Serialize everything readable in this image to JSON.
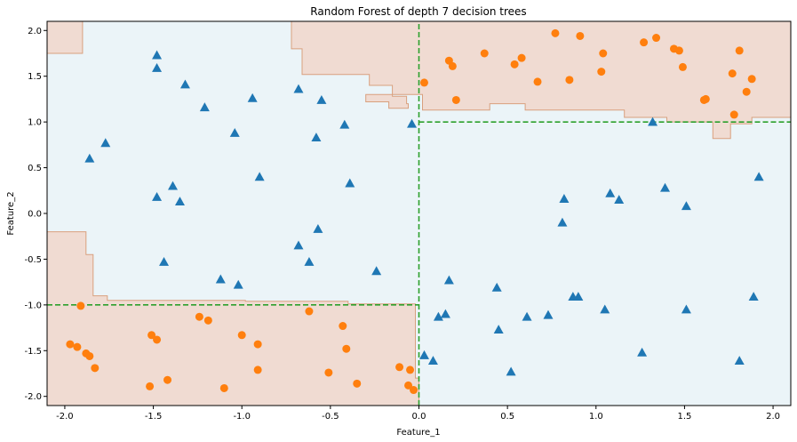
{
  "chart_data": {
    "type": "scatter",
    "title": "Random Forest of depth 7 decision trees",
    "xlabel": "Feature_1",
    "ylabel": "Feature_2",
    "xlim": [
      -2.1,
      2.1
    ],
    "ylim": [
      -2.1,
      2.1
    ],
    "x_ticks": [
      "-2.0",
      "-1.5",
      "-1.0",
      "-0.5",
      "0.0",
      "0.5",
      "1.0",
      "1.5",
      "2.0"
    ],
    "y_ticks": [
      "-2.0",
      "-1.5",
      "-1.0",
      "-0.5",
      "0.0",
      "0.5",
      "1.0",
      "1.5",
      "2.0"
    ],
    "x_tick_values": [
      -2.0,
      -1.5,
      -1.0,
      -0.5,
      0.0,
      0.5,
      1.0,
      1.5,
      2.0
    ],
    "y_tick_values": [
      -2.0,
      -1.5,
      -1.0,
      -0.5,
      0.0,
      0.5,
      1.0,
      1.5,
      2.0
    ],
    "grid": false,
    "colors": {
      "background_region": "#ebf4f8",
      "orange_region": "#f0dbd2",
      "region_edge": "#d9a07e",
      "triangle_marker": "#1f77b4",
      "circle_marker": "#ff7f0e",
      "true_boundary": "#2ca02c"
    },
    "true_boundaries": [
      {
        "x": [
          0.0,
          0.0
        ],
        "y": [
          -2.1,
          2.1
        ]
      },
      {
        "x": [
          -2.1,
          0.0
        ],
        "y": [
          -1.0,
          -1.0
        ]
      },
      {
        "x": [
          0.0,
          2.1
        ],
        "y": [
          1.0,
          1.0
        ]
      }
    ],
    "decision_regions": [
      [
        [
          -2.1,
          1.75
        ],
        [
          -1.9,
          1.75
        ],
        [
          -1.9,
          2.1
        ],
        [
          -2.1,
          2.1
        ]
      ],
      [
        [
          -0.72,
          2.1
        ],
        [
          -0.72,
          1.8
        ],
        [
          -0.66,
          1.8
        ],
        [
          -0.66,
          1.52
        ],
        [
          -0.28,
          1.52
        ],
        [
          -0.28,
          1.4
        ],
        [
          -0.15,
          1.4
        ],
        [
          -0.15,
          1.28
        ],
        [
          -0.07,
          1.28
        ],
        [
          -0.07,
          1.2
        ],
        [
          -0.06,
          1.2
        ],
        [
          -0.06,
          1.15
        ],
        [
          -0.17,
          1.15
        ],
        [
          -0.17,
          1.22
        ],
        [
          -0.3,
          1.22
        ],
        [
          -0.3,
          1.3
        ],
        [
          -0.3,
          1.3
        ],
        [
          0.02,
          1.3
        ],
        [
          0.02,
          1.13
        ],
        [
          0.4,
          1.13
        ],
        [
          0.4,
          1.2
        ],
        [
          0.6,
          1.2
        ],
        [
          0.6,
          1.13
        ],
        [
          1.16,
          1.13
        ],
        [
          1.16,
          1.05
        ],
        [
          1.4,
          1.05
        ],
        [
          1.4,
          1.0
        ],
        [
          1.66,
          1.0
        ],
        [
          1.66,
          0.82
        ],
        [
          1.76,
          0.82
        ],
        [
          1.76,
          0.98
        ],
        [
          1.88,
          0.98
        ],
        [
          1.88,
          1.05
        ],
        [
          2.1,
          1.05
        ],
        [
          2.1,
          2.1
        ]
      ],
      [
        [
          -2.1,
          -0.2
        ],
        [
          -1.88,
          -0.2
        ],
        [
          -1.88,
          -0.45
        ],
        [
          -1.84,
          -0.45
        ],
        [
          -1.84,
          -0.9
        ],
        [
          -1.76,
          -0.9
        ],
        [
          -1.76,
          -0.95
        ],
        [
          -0.98,
          -0.95
        ],
        [
          -0.98,
          -0.96
        ],
        [
          -0.4,
          -0.96
        ],
        [
          -0.4,
          -0.99
        ],
        [
          -0.02,
          -0.99
        ],
        [
          -0.02,
          -1.8
        ],
        [
          0.0,
          -1.8
        ],
        [
          0.0,
          -2.1
        ],
        [
          -2.1,
          -2.1
        ]
      ]
    ],
    "series": [
      {
        "marker": "triangle",
        "color": "#1f77b4",
        "points": [
          [
            -1.48,
            1.73
          ],
          [
            -1.48,
            1.59
          ],
          [
            -1.32,
            1.41
          ],
          [
            -1.21,
            1.16
          ],
          [
            -0.94,
            1.26
          ],
          [
            -0.68,
            1.36
          ],
          [
            -0.55,
            1.24
          ],
          [
            -0.42,
            0.97
          ],
          [
            -0.04,
            0.98
          ],
          [
            -0.58,
            0.83
          ],
          [
            -1.04,
            0.88
          ],
          [
            -1.77,
            0.77
          ],
          [
            -1.86,
            0.6
          ],
          [
            -0.9,
            0.4
          ],
          [
            -1.39,
            0.3
          ],
          [
            -0.39,
            0.33
          ],
          [
            -1.48,
            0.18
          ],
          [
            -1.35,
            0.13
          ],
          [
            -0.57,
            -0.17
          ],
          [
            -0.68,
            -0.35
          ],
          [
            -0.62,
            -0.53
          ],
          [
            -1.44,
            -0.53
          ],
          [
            -0.24,
            -0.63
          ],
          [
            -1.12,
            -0.72
          ],
          [
            -1.02,
            -0.78
          ],
          [
            0.17,
            -0.73
          ],
          [
            0.44,
            -0.81
          ],
          [
            0.15,
            -1.1
          ],
          [
            0.11,
            -1.13
          ],
          [
            0.61,
            -1.13
          ],
          [
            0.73,
            -1.11
          ],
          [
            0.87,
            -0.91
          ],
          [
            0.9,
            -0.91
          ],
          [
            1.05,
            -1.05
          ],
          [
            1.51,
            -1.05
          ],
          [
            1.89,
            -0.91
          ],
          [
            0.45,
            -1.27
          ],
          [
            1.26,
            -1.52
          ],
          [
            0.03,
            -1.55
          ],
          [
            0.08,
            -1.61
          ],
          [
            0.52,
            -1.73
          ],
          [
            1.81,
            -1.61
          ],
          [
            0.82,
            0.16
          ],
          [
            1.08,
            0.22
          ],
          [
            1.13,
            0.15
          ],
          [
            1.39,
            0.28
          ],
          [
            1.51,
            0.08
          ],
          [
            1.92,
            0.4
          ],
          [
            0.81,
            -0.1
          ],
          [
            1.32,
            1.0
          ]
        ]
      },
      {
        "marker": "circle",
        "color": "#ff7f0e",
        "points": [
          [
            0.03,
            1.43
          ],
          [
            0.17,
            1.67
          ],
          [
            0.19,
            1.61
          ],
          [
            0.21,
            1.24
          ],
          [
            0.37,
            1.75
          ],
          [
            0.54,
            1.63
          ],
          [
            0.58,
            1.7
          ],
          [
            0.67,
            1.44
          ],
          [
            0.77,
            1.97
          ],
          [
            0.85,
            1.46
          ],
          [
            0.91,
            1.94
          ],
          [
            1.03,
            1.55
          ],
          [
            1.04,
            1.75
          ],
          [
            1.27,
            1.87
          ],
          [
            1.34,
            1.92
          ],
          [
            1.44,
            1.8
          ],
          [
            1.47,
            1.78
          ],
          [
            1.49,
            1.6
          ],
          [
            1.61,
            1.24
          ],
          [
            1.62,
            1.25
          ],
          [
            1.77,
            1.53
          ],
          [
            1.78,
            1.08
          ],
          [
            1.81,
            1.78
          ],
          [
            1.85,
            1.33
          ],
          [
            1.88,
            1.47
          ],
          [
            -1.91,
            -1.01
          ],
          [
            -1.97,
            -1.43
          ],
          [
            -1.93,
            -1.46
          ],
          [
            -1.88,
            -1.53
          ],
          [
            -1.86,
            -1.56
          ],
          [
            -1.83,
            -1.69
          ],
          [
            -1.51,
            -1.33
          ],
          [
            -1.48,
            -1.38
          ],
          [
            -1.42,
            -1.82
          ],
          [
            -1.52,
            -1.89
          ],
          [
            -1.24,
            -1.13
          ],
          [
            -1.19,
            -1.17
          ],
          [
            -1.0,
            -1.33
          ],
          [
            -0.91,
            -1.43
          ],
          [
            -0.91,
            -1.71
          ],
          [
            -1.1,
            -1.91
          ],
          [
            -0.62,
            -1.07
          ],
          [
            -0.43,
            -1.23
          ],
          [
            -0.41,
            -1.48
          ],
          [
            -0.51,
            -1.74
          ],
          [
            -0.35,
            -1.86
          ],
          [
            -0.11,
            -1.68
          ],
          [
            -0.05,
            -1.71
          ],
          [
            -0.06,
            -1.88
          ],
          [
            -0.03,
            -1.93
          ]
        ]
      }
    ]
  }
}
